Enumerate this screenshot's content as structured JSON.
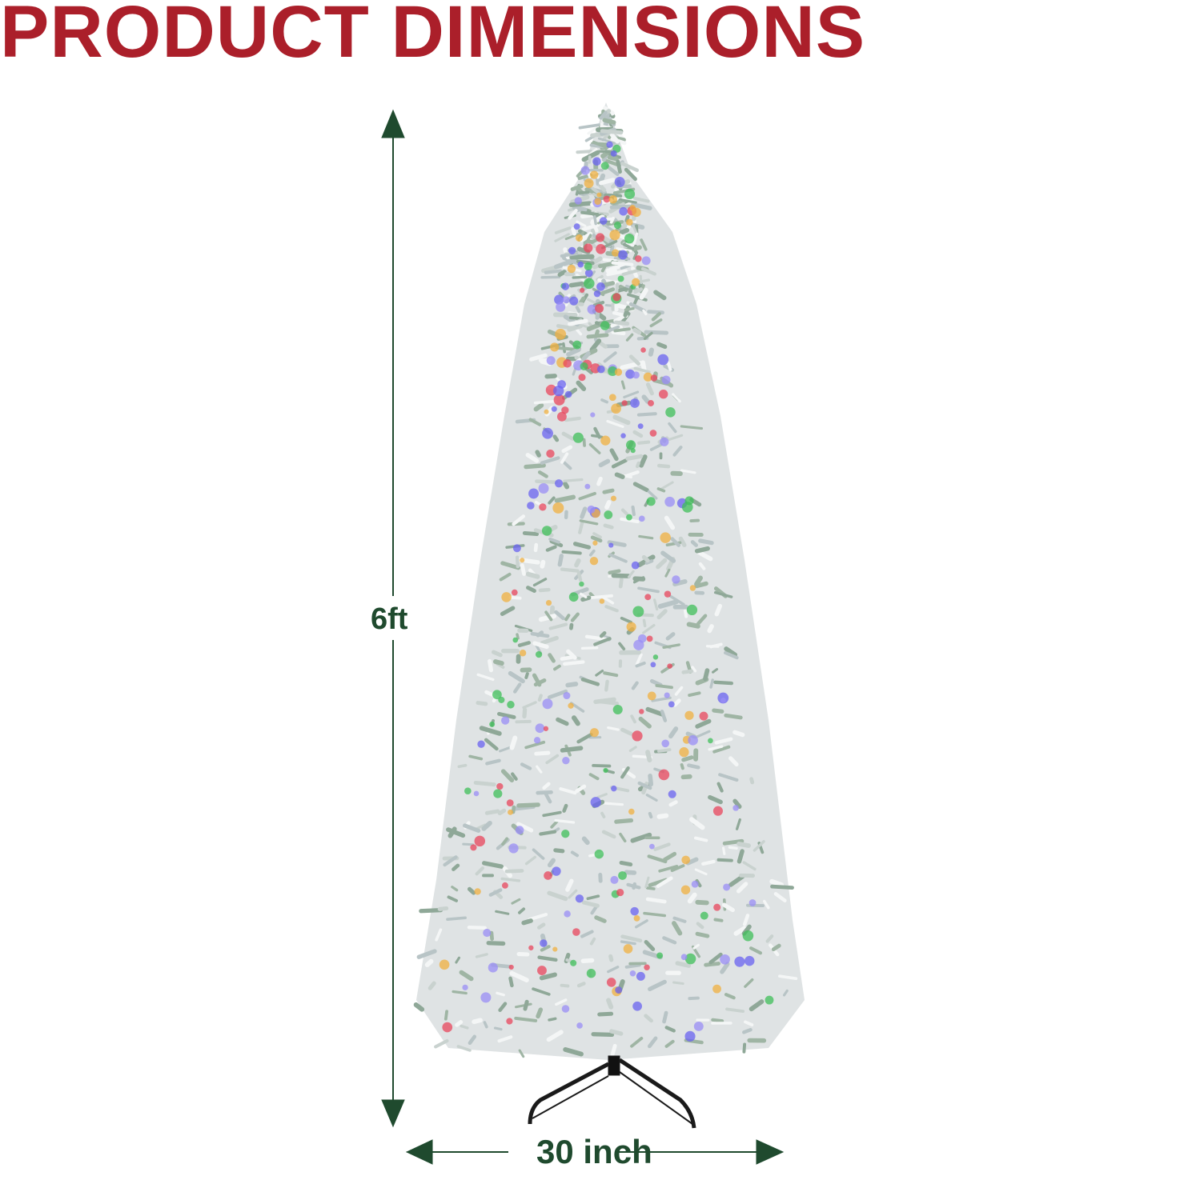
{
  "title": "PRODUCT DIMENSIONS",
  "height_label": "6ft",
  "width_label": "30 inch",
  "colors": {
    "title": "#ab1f2a",
    "dimension": "#1f4a2e",
    "foliage": "#dfe3e4",
    "lights": [
      "#e8465c",
      "#3fbf5a",
      "#6a63f0",
      "#f0b040",
      "#9a8ef5"
    ]
  },
  "icons": [
    "arrow-up-icon",
    "arrow-down-icon",
    "arrow-left-icon",
    "arrow-right-icon"
  ]
}
